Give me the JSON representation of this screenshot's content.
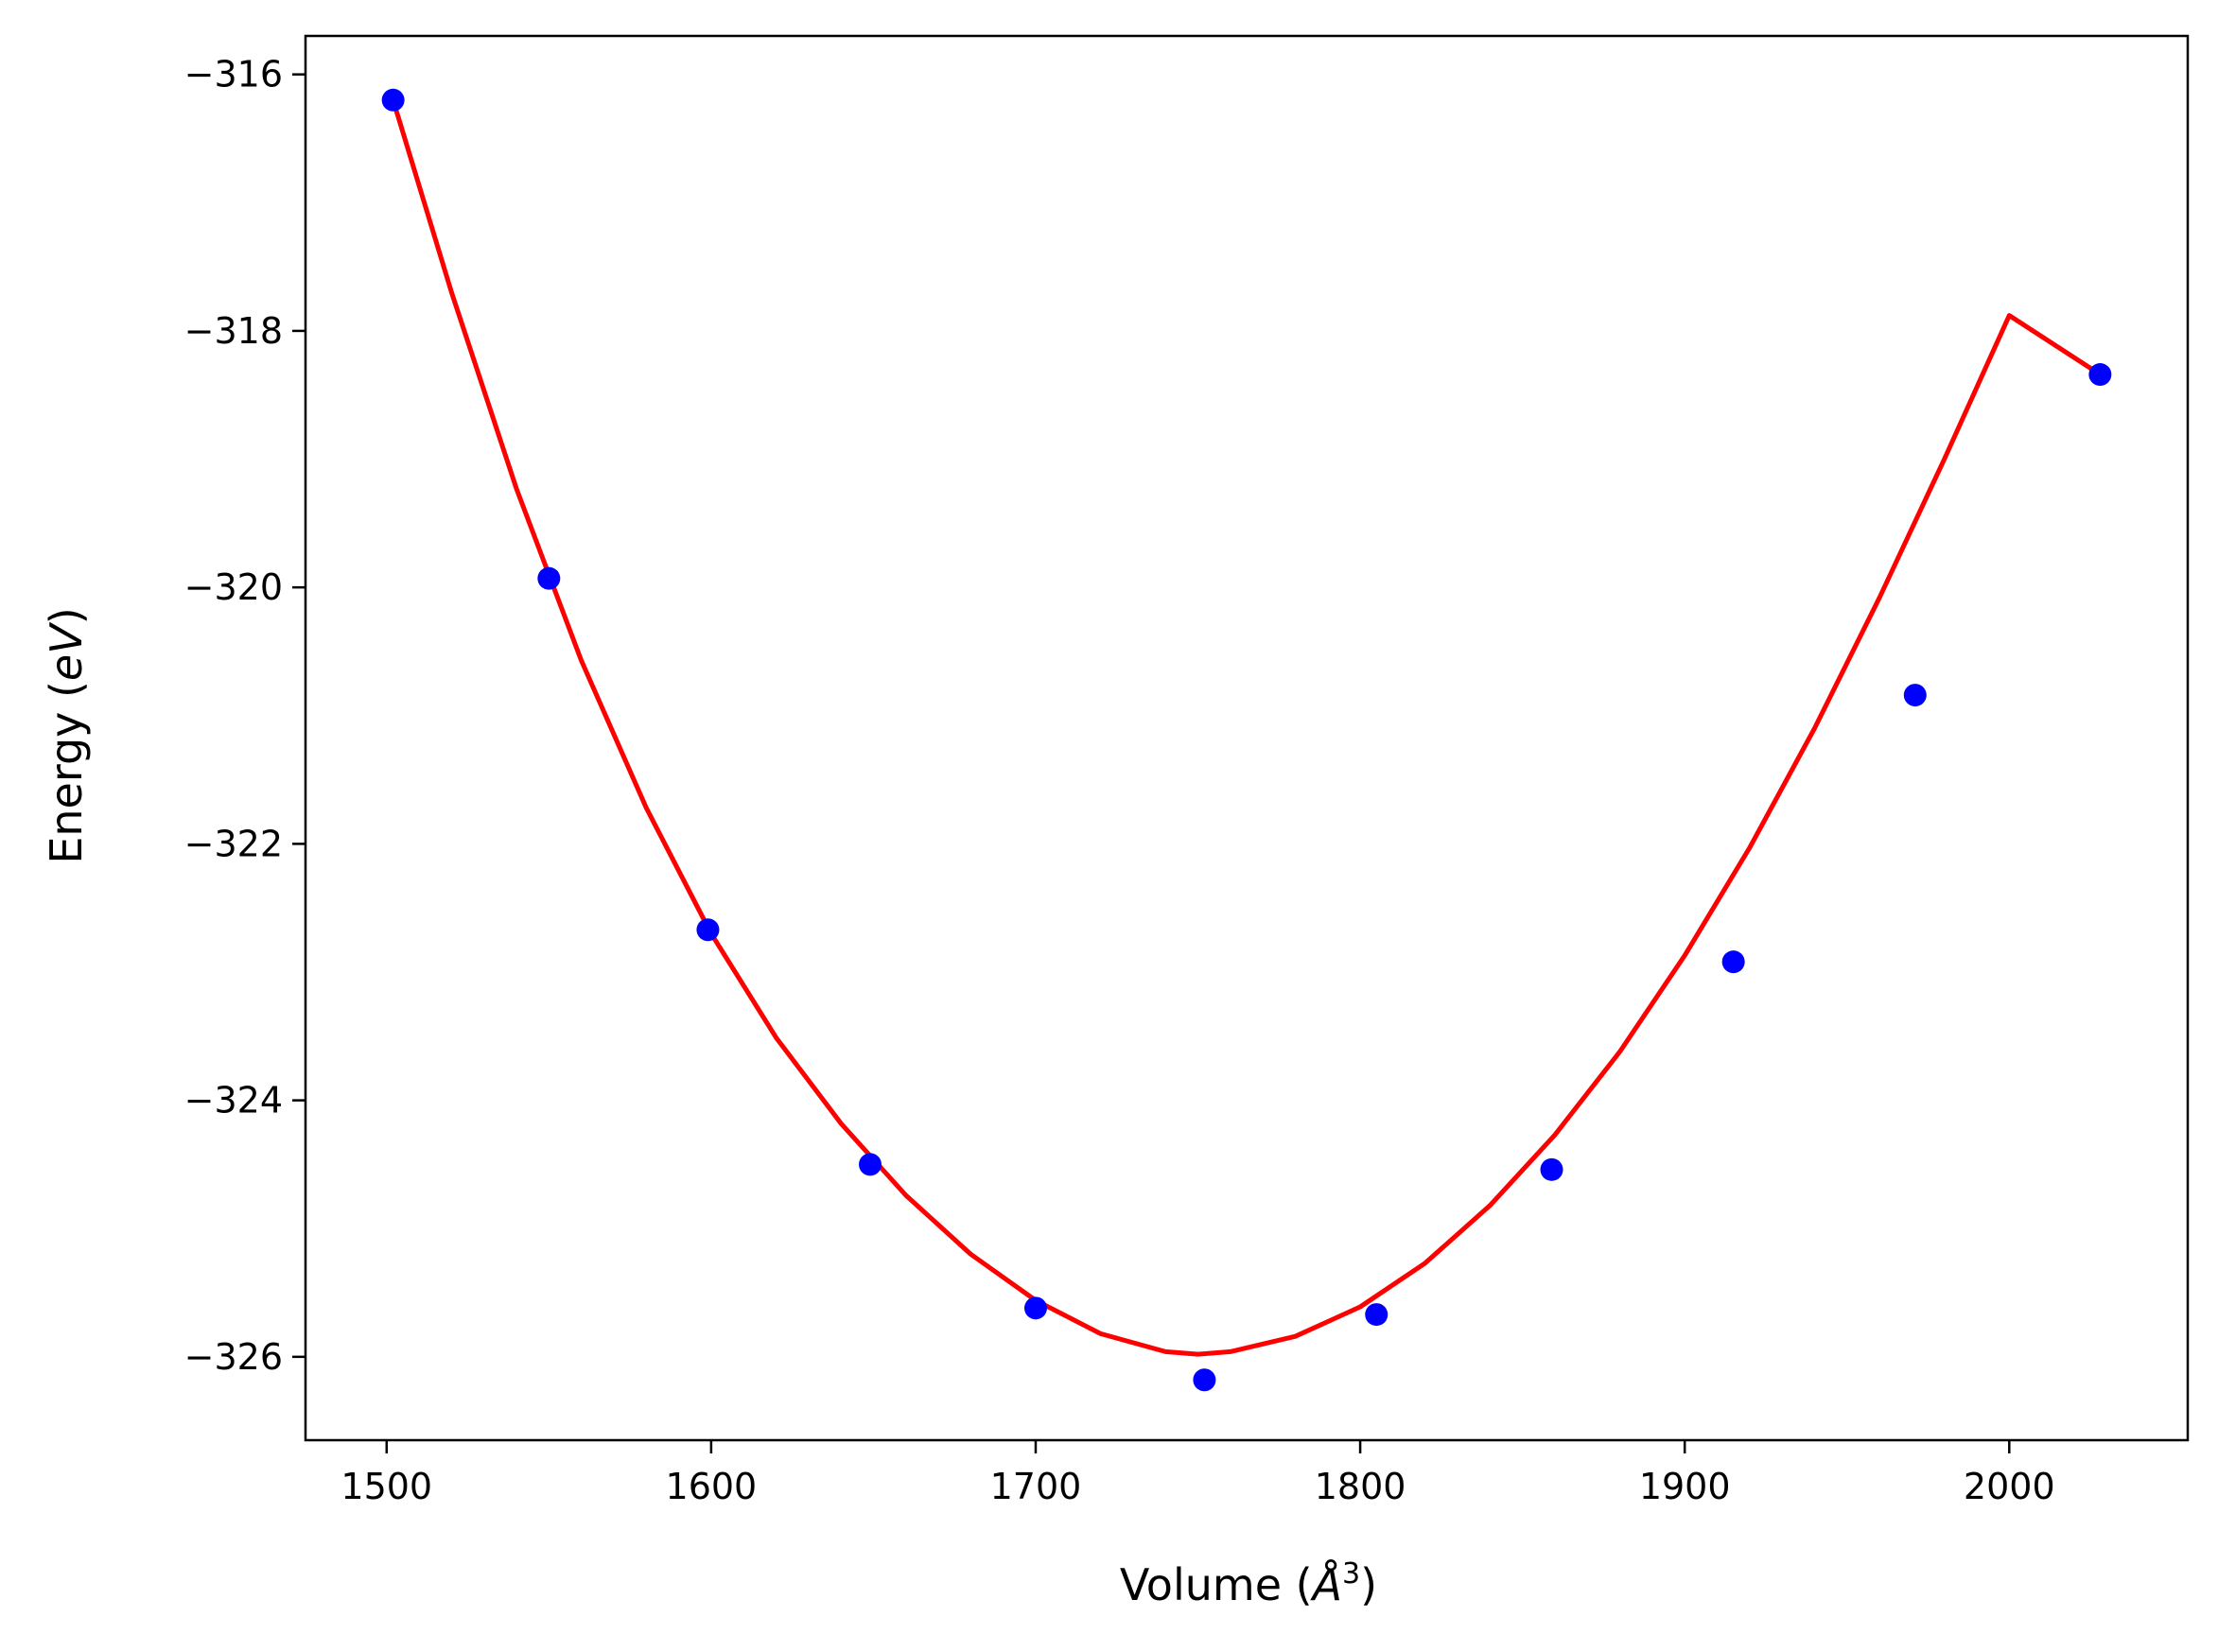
{
  "chart_data": {
    "type": "scatter",
    "xlabel_parts": {
      "prefix": "Volume (",
      "unit": "Å",
      "sup": "3",
      "suffix": ")"
    },
    "ylabel_parts": {
      "prefix": "Energy (",
      "unit": "eV",
      "suffix": ")"
    },
    "xlim": [
      1475,
      2055
    ],
    "ylim": [
      -326.65,
      -315.7
    ],
    "x_ticks": [
      1500,
      1600,
      1700,
      1800,
      1900,
      2000
    ],
    "y_ticks": [
      -316,
      -318,
      -320,
      -322,
      -324,
      -326
    ],
    "x_tick_labels": [
      "1500",
      "1600",
      "1700",
      "1800",
      "1900",
      "2000"
    ],
    "y_tick_labels": [
      "−316",
      "−318",
      "−320",
      "−322",
      "−324",
      "−326"
    ],
    "grid": false,
    "series": [
      {
        "kind": "points",
        "color": "#0000ff",
        "x": [
          1502,
          1550,
          1599,
          1649,
          1700,
          1752,
          1805,
          1859,
          1915,
          1971,
          2028
        ],
        "y": [
          -316.2,
          -319.93,
          -322.67,
          -324.5,
          -325.62,
          -326.18,
          -325.67,
          -324.54,
          -322.92,
          -320.84,
          -318.34
        ]
      },
      {
        "kind": "fit-curve",
        "color": "#ff0000",
        "x": [
          1502,
          1520,
          1540,
          1560,
          1580,
          1600,
          1620,
          1640,
          1660,
          1680,
          1700,
          1720,
          1740,
          1750,
          1760,
          1780,
          1800,
          1820,
          1840,
          1860,
          1880,
          1900,
          1920,
          1940,
          1960,
          1980,
          2000,
          2028
        ],
        "y": [
          -316.2,
          -317.7,
          -319.23,
          -320.57,
          -321.72,
          -322.7,
          -323.51,
          -324.18,
          -324.74,
          -325.2,
          -325.56,
          -325.82,
          -325.96,
          -325.98,
          -325.96,
          -325.84,
          -325.61,
          -325.27,
          -324.82,
          -324.27,
          -323.62,
          -322.87,
          -322.03,
          -321.1,
          -320.08,
          -319.0,
          -317.88,
          -318.34
        ]
      }
    ]
  }
}
